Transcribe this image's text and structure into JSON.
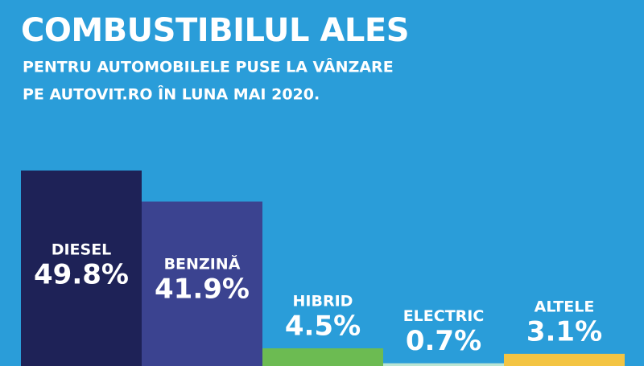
{
  "chart_data": {
    "type": "bar",
    "title": "COMBUSTIBILUL ALES",
    "subtitle": [
      "PENTRU AUTOMOBILELE PUSE LA VÂNZARE",
      "PE AUTOVIT.RO ÎN LUNA MAI 2020."
    ],
    "categories": [
      "DIESEL",
      "BENZINĂ",
      "HIBRID",
      "ELECTRIC",
      "ALTELE"
    ],
    "values": [
      49.8,
      41.9,
      4.5,
      0.7,
      3.1
    ],
    "value_labels": [
      "49.8%",
      "41.9%",
      "4.5%",
      "0.7%",
      "3.1%"
    ],
    "colors": [
      "#1e2257",
      "#3b4390",
      "#6cbb52",
      "#b9e5d3",
      "#f3c443"
    ]
  }
}
